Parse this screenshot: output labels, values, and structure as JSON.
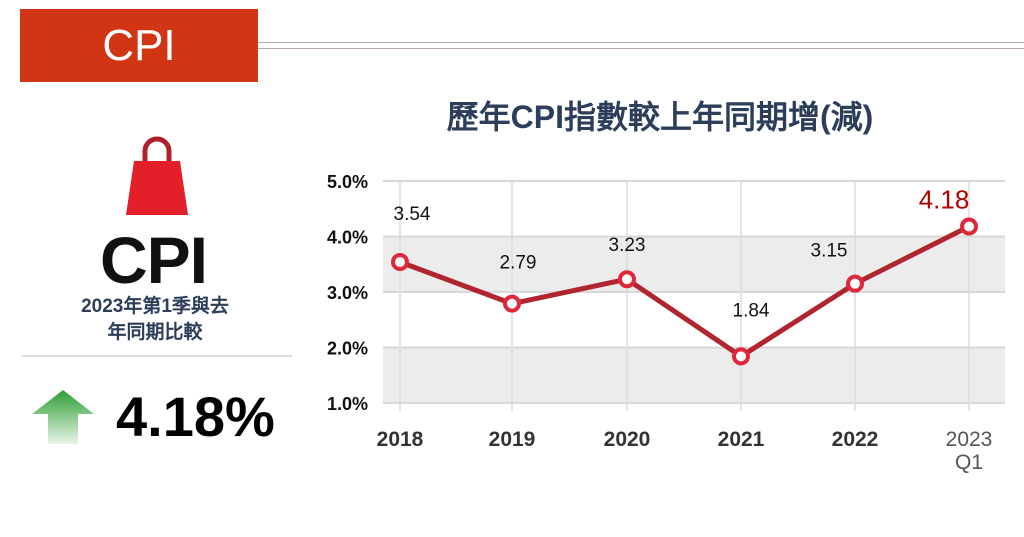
{
  "header": {
    "banner_label": "CPI"
  },
  "side_panel": {
    "icon": "shopping-bag-icon",
    "big_label": "CPI",
    "subtitle_line1": "2023年第1季與去",
    "subtitle_line2": "年同期比較",
    "trend_icon": "arrow-up-icon",
    "value": "4.18%",
    "colors": {
      "bag": "#e3202a",
      "arrow": "#3aa83a"
    }
  },
  "chart_data": {
    "type": "line",
    "title": "歷年CPI指數較上年同期增(減)",
    "categories": [
      "2018",
      "2019",
      "2020",
      "2021",
      "2022",
      "2023 Q1"
    ],
    "category_lines": [
      [
        "2018"
      ],
      [
        "2019"
      ],
      [
        "2020"
      ],
      [
        "2021"
      ],
      [
        "2022"
      ],
      [
        "2023",
        "Q1"
      ]
    ],
    "values": [
      3.54,
      2.79,
      3.23,
      1.84,
      3.15,
      4.18
    ],
    "data_labels": [
      "3.54",
      "2.79",
      "3.23",
      "1.84",
      "3.15",
      "4.18"
    ],
    "highlight_index": 5,
    "ylim": [
      1.0,
      5.0
    ],
    "yticks": [
      "1.0%",
      "2.0%",
      "3.0%",
      "4.0%",
      "5.0%"
    ],
    "ytick_values": [
      1,
      2,
      3,
      4,
      5
    ],
    "grid": true,
    "colors": {
      "line": "#b0252f",
      "highlight_label": "#b00000",
      "band": "#ececec"
    }
  }
}
